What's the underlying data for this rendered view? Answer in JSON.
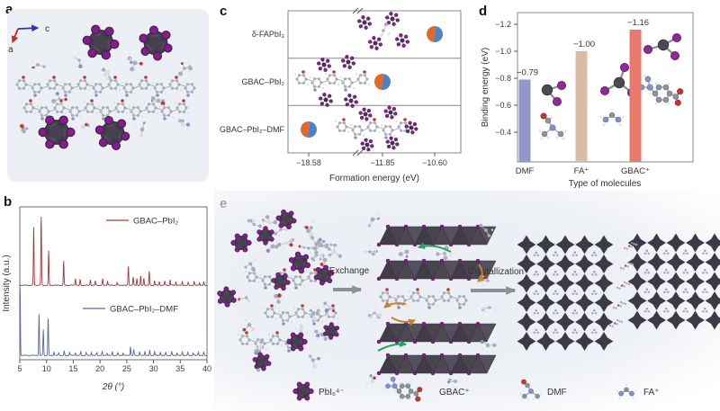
{
  "panel_labels": {
    "a": "a",
    "b": "b",
    "c": "c",
    "d": "d",
    "e": "e"
  },
  "panel_a": {
    "axis_arrows": {
      "right_label": "c",
      "down_label": "a",
      "right_color": "#2535c8",
      "down_color": "#c03028"
    }
  },
  "chart_data": [
    {
      "panel": "b",
      "type": "line",
      "title": "",
      "xlabel": "2θ (°)",
      "ylabel": "Intensity (a.u.)",
      "xlim": [
        5,
        40
      ],
      "xticks": [
        5,
        10,
        15,
        20,
        25,
        30,
        35,
        40
      ],
      "grid": false,
      "legend_position": "inside-right",
      "series": [
        {
          "name": "GBAC–PbI₂",
          "color": "#a13a3a",
          "peaks": [
            [
              7.6,
              0.85
            ],
            [
              9.0,
              1.0
            ],
            [
              10.4,
              0.5
            ],
            [
              13.2,
              0.35
            ],
            [
              15.4,
              0.1
            ],
            [
              16.3,
              0.08
            ],
            [
              18.2,
              0.08
            ],
            [
              19.1,
              0.06
            ],
            [
              20.5,
              0.09
            ],
            [
              21.4,
              0.06
            ],
            [
              23.2,
              0.04
            ],
            [
              25.3,
              0.28
            ],
            [
              26.2,
              0.12
            ],
            [
              26.9,
              0.1
            ],
            [
              27.6,
              0.13
            ],
            [
              28.2,
              0.1
            ],
            [
              29.2,
              0.2
            ],
            [
              30.2,
              0.07
            ],
            [
              31.1,
              0.05
            ],
            [
              32.1,
              0.06
            ],
            [
              33.1,
              0.08
            ],
            [
              34.2,
              0.05
            ],
            [
              35.4,
              0.05
            ],
            [
              36.5,
              0.04
            ],
            [
              37.6,
              0.05
            ],
            [
              38.6,
              0.04
            ],
            [
              39.4,
              0.04
            ]
          ]
        },
        {
          "name": "GBAC–PbI₂–DMF",
          "color": "#5a689a",
          "peaks": [
            [
              5.05,
              1.0
            ],
            [
              8.6,
              0.6
            ],
            [
              9.4,
              0.38
            ],
            [
              10.3,
              0.55
            ],
            [
              11.4,
              0.05
            ],
            [
              12.3,
              0.04
            ],
            [
              13.3,
              0.06
            ],
            [
              14.3,
              0.05
            ],
            [
              15.4,
              0.04
            ],
            [
              16.4,
              0.05
            ],
            [
              17.4,
              0.04
            ],
            [
              18.4,
              0.05
            ],
            [
              19.4,
              0.04
            ],
            [
              20.4,
              0.05
            ],
            [
              21.3,
              0.04
            ],
            [
              22.3,
              0.05
            ],
            [
              23.3,
              0.04
            ],
            [
              24.3,
              0.04
            ],
            [
              25.7,
              0.13
            ],
            [
              26.3,
              0.08
            ],
            [
              27.4,
              0.05
            ],
            [
              28.4,
              0.06
            ],
            [
              29.3,
              0.07
            ],
            [
              30.2,
              0.06
            ],
            [
              31.3,
              0.05
            ],
            [
              32.3,
              0.04
            ],
            [
              33.4,
              0.05
            ],
            [
              34.4,
              0.04
            ],
            [
              35.4,
              0.05
            ],
            [
              36.4,
              0.04
            ],
            [
              37.4,
              0.04
            ],
            [
              38.4,
              0.05
            ],
            [
              39.4,
              0.04
            ]
          ]
        }
      ]
    },
    {
      "panel": "c",
      "type": "scatter",
      "xlabel": "Formation energy (eV)",
      "categories": [
        "δ-FAPbI₃",
        "GBAC–PbI₂",
        "GBAC–PbI₂–DMF"
      ],
      "values": [
        -10.6,
        -11.85,
        -18.58
      ],
      "xtick_labels": [
        "−18.58",
        "−11.85",
        "−10.60"
      ],
      "axis_break": true,
      "marker_colors": {
        "left": "#e06a2a",
        "right": "#4d82c4"
      }
    },
    {
      "panel": "d",
      "type": "bar",
      "categories": [
        "DMF",
        "FA⁺",
        "GBAC⁺"
      ],
      "values": [
        -0.79,
        -1.0,
        -1.16
      ],
      "bar_labels": [
        "−0.79",
        "−1.00",
        "−1.16"
      ],
      "colors": [
        "#9197cb",
        "#d8bca5",
        "#e8796d"
      ],
      "ylabel": "Binding energy (eV)",
      "xlabel": "Type of molecules",
      "yticks": [
        -1.2,
        -1.0,
        -0.8,
        -0.6,
        -0.4
      ],
      "ytick_labels": [
        "−1.2",
        "−1.0",
        "−0.8",
        "−0.6",
        "−0.4"
      ],
      "ylim": [
        -1.28,
        -0.28
      ],
      "inverted_axis": true
    }
  ],
  "panel_e": {
    "step_labels": {
      "exchange": "Exchange",
      "crystallization": "Crystallization"
    },
    "legend": [
      {
        "name": "PbI₆⁴⁻",
        "icon": "pbi6-octahedron-icon"
      },
      {
        "name": "GBAC⁺",
        "icon": "gbac-molecule-icon"
      },
      {
        "name": "DMF",
        "icon": "dmf-molecule-icon"
      },
      {
        "name": "FA⁺",
        "icon": "fa-molecule-icon"
      }
    ]
  }
}
